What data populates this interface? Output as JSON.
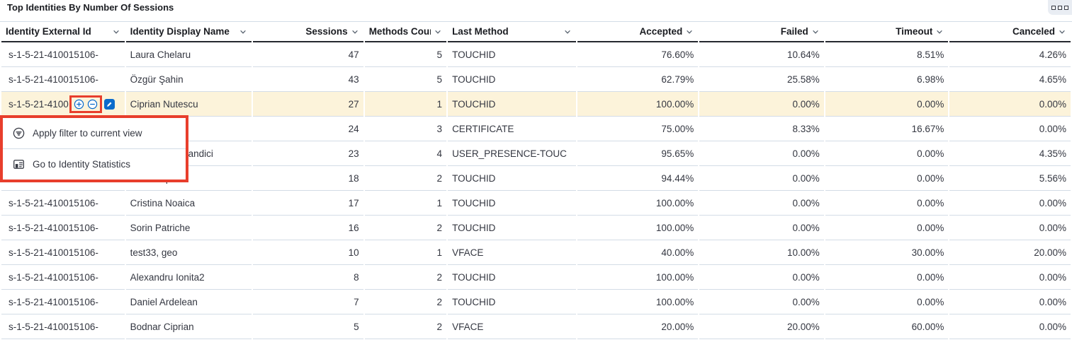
{
  "panel": {
    "title": "Top Identities By Number Of Sessions"
  },
  "panel_options": {
    "icon": "panel-options-grid"
  },
  "colors": {
    "annotation_red": "#e83e2c",
    "highlight_row": "#fcf3da",
    "action_blue": "#0b6bcb",
    "border_light": "#d3dce6"
  },
  "icons": {
    "chevron_down": "chevron-down",
    "filter_for": "plus-in-circle",
    "filter_out": "minus-in-circle",
    "edit": "pencil-in-blue-square",
    "apply_filter": "filter-in-circle",
    "identity_statistics": "stats-panel"
  },
  "table": {
    "columns": [
      {
        "key": "external_id",
        "label": "Identity External Id",
        "align": "left"
      },
      {
        "key": "display_name",
        "label": "Identity Display Name",
        "align": "left"
      },
      {
        "key": "sessions",
        "label": "Sessions",
        "align": "right"
      },
      {
        "key": "methods_count",
        "label": "Methods Count",
        "align": "right"
      },
      {
        "key": "last_method",
        "label": "Last Method",
        "align": "left"
      },
      {
        "key": "accepted",
        "label": "Accepted",
        "align": "right"
      },
      {
        "key": "failed",
        "label": "Failed",
        "align": "right"
      },
      {
        "key": "timeout",
        "label": "Timeout",
        "align": "right"
      },
      {
        "key": "canceled",
        "label": "Canceled",
        "align": "right"
      }
    ],
    "rows": [
      {
        "highlighted": false,
        "filter_icons": false,
        "cells": {
          "external_id": "s-1-5-21-410015106-",
          "display_name": "Laura Chelaru",
          "sessions": "47",
          "methods_count": "5",
          "last_method": "TOUCHID",
          "accepted": "76.60%",
          "failed": "10.64%",
          "timeout": "8.51%",
          "canceled": "4.26%"
        }
      },
      {
        "highlighted": false,
        "filter_icons": false,
        "cells": {
          "external_id": "s-1-5-21-410015106-",
          "display_name": "Özgür Şahin",
          "sessions": "43",
          "methods_count": "5",
          "last_method": "TOUCHID",
          "accepted": "62.79%",
          "failed": "25.58%",
          "timeout": "6.98%",
          "canceled": "4.65%"
        }
      },
      {
        "highlighted": true,
        "filter_icons": true,
        "cells": {
          "external_id": "s-1-5-21-4100",
          "display_name": "Ciprian Nutescu",
          "sessions": "27",
          "methods_count": "1",
          "last_method": "TOUCHID",
          "accepted": "100.00%",
          "failed": "0.00%",
          "timeout": "0.00%",
          "canceled": "0.00%"
        }
      },
      {
        "highlighted": false,
        "filter_icons": false,
        "cells": {
          "external_id": "",
          "display_name": "",
          "sessions": "24",
          "methods_count": "3",
          "last_method": "CERTIFICATE",
          "accepted": "75.00%",
          "failed": "8.33%",
          "timeout": "16.67%",
          "canceled": "0.00%"
        }
      },
      {
        "highlighted": false,
        "filter_icons": false,
        "cells": {
          "external_id": "",
          "display_name": "andici",
          "sessions": "23",
          "methods_count": "4",
          "last_method": "USER_PRESENCE-TOUC",
          "accepted": "95.65%",
          "failed": "0.00%",
          "timeout": "0.00%",
          "canceled": "4.35%"
        }
      },
      {
        "highlighted": false,
        "filter_icons": false,
        "cells": {
          "external_id": "s-1-5-21-410015106-",
          "display_name": "Ionut Popa",
          "sessions": "18",
          "methods_count": "2",
          "last_method": "TOUCHID",
          "accepted": "94.44%",
          "failed": "0.00%",
          "timeout": "0.00%",
          "canceled": "5.56%"
        }
      },
      {
        "highlighted": false,
        "filter_icons": false,
        "cells": {
          "external_id": "s-1-5-21-410015106-",
          "display_name": "Cristina Noaica",
          "sessions": "17",
          "methods_count": "1",
          "last_method": "TOUCHID",
          "accepted": "100.00%",
          "failed": "0.00%",
          "timeout": "0.00%",
          "canceled": "0.00%"
        }
      },
      {
        "highlighted": false,
        "filter_icons": false,
        "cells": {
          "external_id": "s-1-5-21-410015106-",
          "display_name": "Sorin Patriche",
          "sessions": "16",
          "methods_count": "2",
          "last_method": "TOUCHID",
          "accepted": "100.00%",
          "failed": "0.00%",
          "timeout": "0.00%",
          "canceled": "0.00%"
        }
      },
      {
        "highlighted": false,
        "filter_icons": false,
        "cells": {
          "external_id": "s-1-5-21-410015106-",
          "display_name": "test33, geo",
          "sessions": "10",
          "methods_count": "1",
          "last_method": "VFACE",
          "accepted": "40.00%",
          "failed": "10.00%",
          "timeout": "30.00%",
          "canceled": "20.00%"
        }
      },
      {
        "highlighted": false,
        "filter_icons": false,
        "cells": {
          "external_id": "s-1-5-21-410015106-",
          "display_name": "Alexandru Ionita2",
          "sessions": "8",
          "methods_count": "2",
          "last_method": "TOUCHID",
          "accepted": "100.00%",
          "failed": "0.00%",
          "timeout": "0.00%",
          "canceled": "0.00%"
        }
      },
      {
        "highlighted": false,
        "filter_icons": false,
        "cells": {
          "external_id": "s-1-5-21-410015106-",
          "display_name": "Daniel Ardelean",
          "sessions": "7",
          "methods_count": "2",
          "last_method": "TOUCHID",
          "accepted": "100.00%",
          "failed": "0.00%",
          "timeout": "0.00%",
          "canceled": "0.00%"
        }
      },
      {
        "highlighted": false,
        "filter_icons": false,
        "cells": {
          "external_id": "s-1-5-21-410015106-",
          "display_name": "Bodnar Ciprian",
          "sessions": "5",
          "methods_count": "2",
          "last_method": "VFACE",
          "accepted": "20.00%",
          "failed": "20.00%",
          "timeout": "60.00%",
          "canceled": "0.00%"
        }
      }
    ]
  },
  "context_menu": {
    "items": [
      {
        "label": "Apply filter to current view",
        "icon": "filter-in-circle"
      },
      {
        "label": "Go to Identity Statistics",
        "icon": "stats-panel"
      }
    ]
  }
}
